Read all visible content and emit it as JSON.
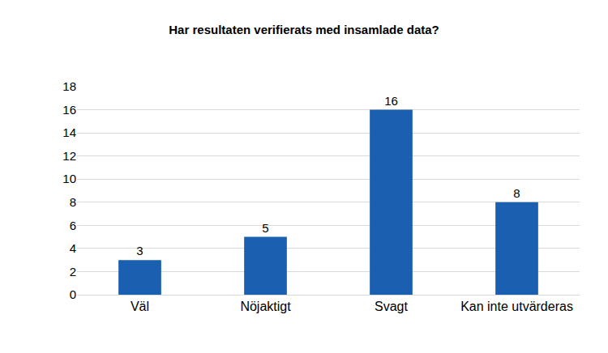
{
  "chart_data": {
    "type": "bar",
    "title": "Har resultaten verifierats med insamlade data?",
    "categories": [
      "Väl",
      "Nöjaktigt",
      "Svagt",
      "Kan inte utvärderas"
    ],
    "values": [
      3,
      5,
      16,
      8
    ],
    "color": "#1a5fb0",
    "ylim": [
      0,
      18
    ],
    "yticks": [
      0,
      2,
      4,
      6,
      8,
      10,
      12,
      14,
      16,
      18
    ],
    "grid": true,
    "data_labels": true
  }
}
